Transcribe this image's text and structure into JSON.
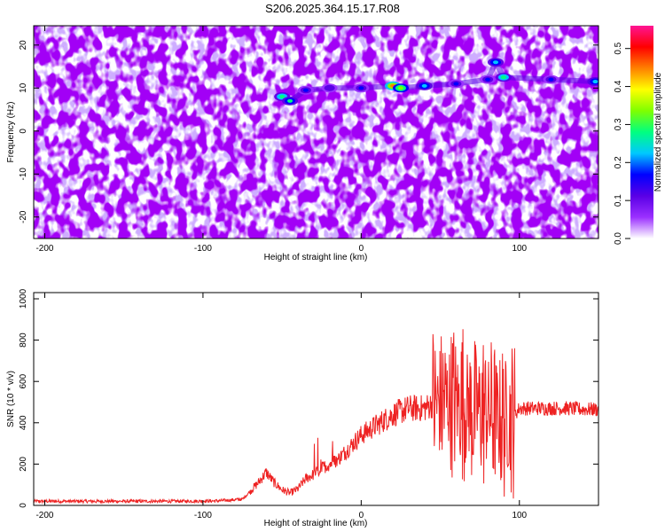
{
  "figure": {
    "title": "S206.2025.364.15.17.R08"
  },
  "chart_data": [
    {
      "type": "heatmap",
      "title": "S206.2025.364.15.17.R08",
      "xlabel": "Height of straight line (km)",
      "ylabel": "Frequency (Hz)",
      "xlim": [
        -207,
        150
      ],
      "ylim": [
        -25,
        24.5
      ],
      "xticks": [
        -200,
        -100,
        0,
        100
      ],
      "yticks": [
        -20,
        -10,
        0,
        10,
        20
      ],
      "colorbar": {
        "label": "Normalized spectral amplitude",
        "range": [
          0.0,
          0.56
        ],
        "ticks": [
          0.0,
          0.1,
          0.2,
          0.3,
          0.4,
          0.5
        ],
        "colors": [
          "#ffffff",
          "#9b30ff",
          "#5a00e6",
          "#0000ff",
          "#00c8ff",
          "#00ff80",
          "#7fff00",
          "#ffff00",
          "#ff8000",
          "#ff0000",
          "#ff1493"
        ]
      },
      "background_level": 0.05,
      "ridge": [
        {
          "x": -50,
          "y": 8,
          "level": 0.28
        },
        {
          "x": -45,
          "y": 7,
          "level": 0.26
        },
        {
          "x": -35,
          "y": 9.5,
          "level": 0.18
        },
        {
          "x": -20,
          "y": 10,
          "level": 0.12
        },
        {
          "x": 0,
          "y": 10,
          "level": 0.14
        },
        {
          "x": 20,
          "y": 10.5,
          "level": 0.45
        },
        {
          "x": 25,
          "y": 10,
          "level": 0.35
        },
        {
          "x": 40,
          "y": 10.5,
          "level": 0.2
        },
        {
          "x": 60,
          "y": 11,
          "level": 0.14
        },
        {
          "x": 80,
          "y": 12,
          "level": 0.16
        },
        {
          "x": 85,
          "y": 16,
          "level": 0.2
        },
        {
          "x": 90,
          "y": 12.5,
          "level": 0.3
        },
        {
          "x": 120,
          "y": 12,
          "level": 0.14
        },
        {
          "x": 148,
          "y": 11.5,
          "level": 0.25
        }
      ],
      "grid": false
    },
    {
      "type": "line",
      "xlabel": "Height of straight line (km)",
      "ylabel": "SNR (10 * v/v)",
      "xlim": [
        -207,
        150
      ],
      "ylim": [
        0,
        1030
      ],
      "xticks": [
        -200,
        -100,
        0,
        100
      ],
      "yticks": [
        0,
        200,
        400,
        600,
        800,
        1000
      ],
      "color": "#ee2222",
      "grid": false,
      "series": [
        {
          "x": [
            -207,
            -180,
            -150,
            -120,
            -90,
            -75,
            -65,
            -60,
            -55,
            -50,
            -45,
            -40,
            -35,
            -30,
            -25,
            -20,
            -15,
            -10,
            -5,
            0,
            10,
            20,
            30,
            40,
            45,
            50,
            55,
            60,
            65,
            70,
            75,
            80,
            85,
            90,
            95,
            100,
            110,
            120,
            130,
            140,
            150
          ],
          "values": [
            20,
            20,
            20,
            20,
            22,
            30,
            110,
            160,
            110,
            75,
            60,
            80,
            130,
            150,
            180,
            200,
            220,
            260,
            300,
            340,
            390,
            440,
            470,
            470,
            490,
            500,
            510,
            500,
            505,
            470,
            470,
            460,
            440,
            400,
            420,
            470,
            470,
            470,
            470,
            465,
            465
          ]
        }
      ]
    }
  ]
}
